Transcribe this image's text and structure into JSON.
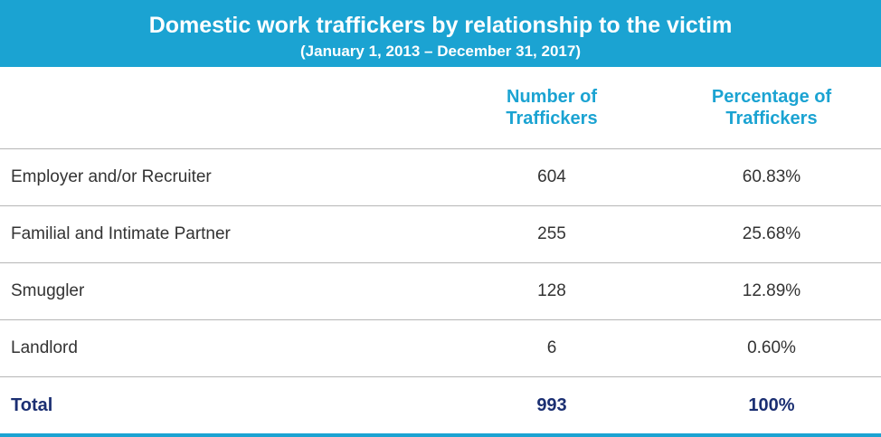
{
  "chart_data": {
    "type": "table",
    "title": "Domestic work traffickers by relationship to the victim",
    "subtitle": "(January 1, 2013 – December 31, 2017)",
    "columns": [
      "",
      [
        "Number of",
        "Traffickers"
      ],
      [
        "Percentage of",
        "Traffickers"
      ]
    ],
    "rows": [
      {
        "label": "Employer and/or Recruiter",
        "number": "604",
        "percentage": "60.83%"
      },
      {
        "label": "Familial and Intimate Partner",
        "number": "255",
        "percentage": "25.68%"
      },
      {
        "label": "Smuggler",
        "number": "128",
        "percentage": "12.89%"
      },
      {
        "label": "Landlord",
        "number": "6",
        "percentage": "0.60%"
      }
    ],
    "total": {
      "label": "Total",
      "number": "993",
      "percentage": "100%"
    },
    "colors": {
      "banner": "#1ba3d2",
      "header_text": "#1ba3d2",
      "total_text": "#1b2f72",
      "body_text": "#333333",
      "rule": "#b7b7b7"
    }
  }
}
